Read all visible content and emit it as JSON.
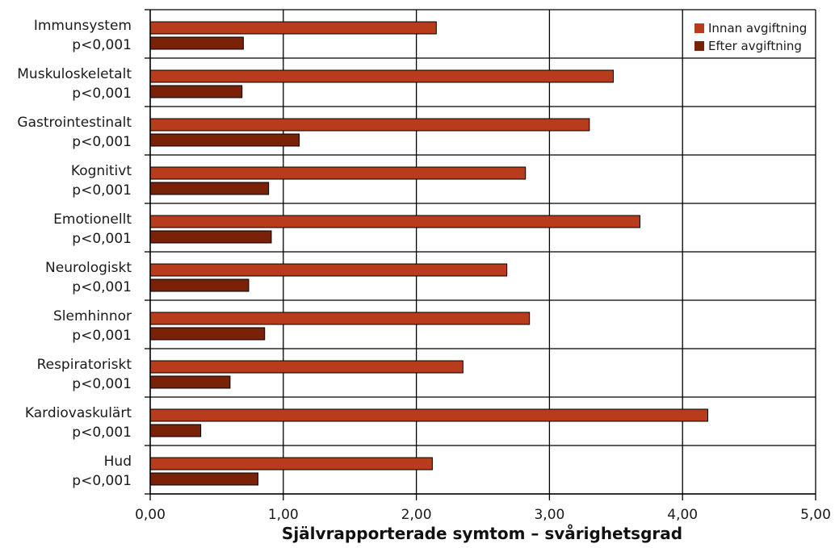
{
  "chart_data": {
    "type": "bar",
    "orientation": "horizontal",
    "categories": [
      "Immunsystem",
      "Muskuloskeletalt",
      "Gastrointestinalt",
      "Kognitivt",
      "Emotionellt",
      "Neurologiskt",
      "Slemhinnor",
      "Respiratoriskt",
      "Kardiovaskulärt",
      "Hud"
    ],
    "p_values": [
      "p<0,001",
      "p<0,001",
      "p<0,001",
      "p<0,001",
      "p<0,001",
      "p<0,001",
      "p<0,001",
      "p<0,001",
      "p<0,001",
      "p<0,001"
    ],
    "series": [
      {
        "name": "Innan avgiftning",
        "color": "#b83c1c",
        "values": [
          2.15,
          3.48,
          3.3,
          2.82,
          3.68,
          2.68,
          2.85,
          2.35,
          4.19,
          2.12
        ]
      },
      {
        "name": "Efter avgiftning",
        "color": "#7a2208",
        "values": [
          0.7,
          0.69,
          1.12,
          0.89,
          0.91,
          0.74,
          0.86,
          0.6,
          0.38,
          0.81
        ]
      }
    ],
    "xlim": [
      0,
      5
    ],
    "xticks": [
      0,
      1,
      2,
      3,
      4,
      5
    ],
    "xtick_labels": [
      "0,00",
      "1,00",
      "2,00",
      "3,00",
      "4,00",
      "5,00"
    ],
    "xlabel": "Självrapporterade symtom – svårighetsgrad",
    "grid": true,
    "legend_position": "top-right"
  }
}
